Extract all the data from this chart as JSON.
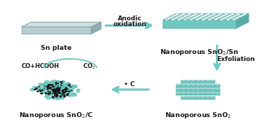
{
  "bg_color": "#ffffff",
  "teal": "#7DCCC6",
  "teal_light": "#A8DDD9",
  "teal_dark": "#5AADA7",
  "teal_mid": "#6EC8C0",
  "gray_top": "#ccdde0",
  "gray_front": "#b8cdd0",
  "gray_side": "#90adb2",
  "gray_edge": "#7a9aa0",
  "arrow_color": "#6EC8C0",
  "text_color": "#1a1a1a",
  "black": "#111111",
  "labels": {
    "sn_plate": "Sn plate",
    "nanoporous_sno2_sn": "Nanoporous SnO$_2$/Sn",
    "nanoporous_sno2": "Nanoporous SnO$_2$",
    "nanoporous_sno2_c": "Nanoporous SnO$_2$/C",
    "anodic_line1": "Anodic",
    "anodic_line2": "oxidation",
    "exfoliation": "Exfoliation",
    "carbon": "• C",
    "co_hcooh": "CO+HCOOH",
    "co2": "CO$_2$"
  },
  "figsize": [
    3.78,
    1.84
  ],
  "dpi": 100
}
